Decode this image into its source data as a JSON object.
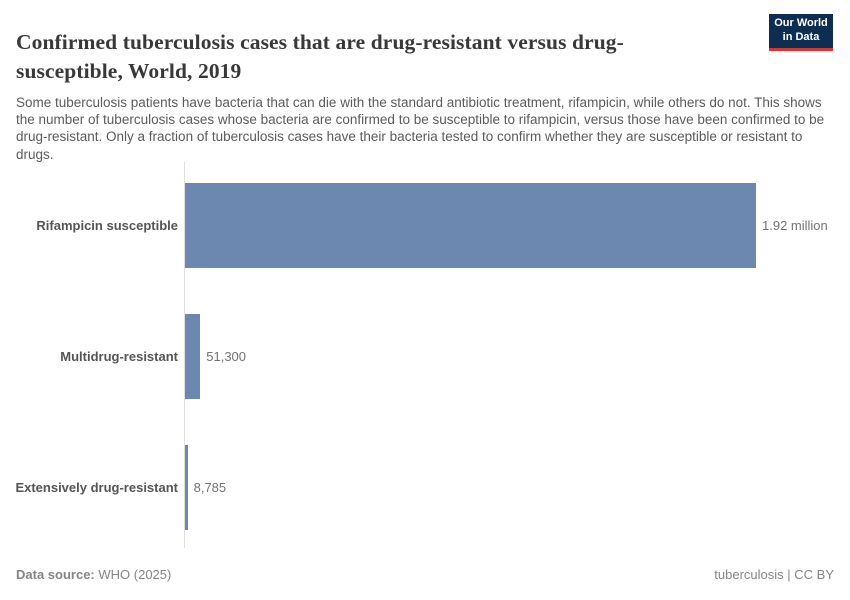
{
  "header": {
    "title": "Confirmed tuberculosis cases that are drug-resistant versus drug-susceptible, World, 2019",
    "subtitle": "Some tuberculosis patients have bacteria that can die with the standard antibiotic treatment, rifampicin, while others do not. This shows the number of tuberculosis cases whose bacteria are confirmed to be susceptible to rifampicin, versus those have been confirmed to be drug-resistant. Only a fraction of tuberculosis cases have their bacteria tested to confirm whether they are susceptible or resistant to drugs.",
    "logo": {
      "line1": "Our World",
      "line2": "in Data",
      "background_color": "#0d2d52",
      "accent_color": "#d8352e"
    }
  },
  "chart_data": {
    "type": "bar",
    "orientation": "horizontal",
    "title": "Confirmed tuberculosis cases that are drug-resistant versus drug-susceptible, World, 2019",
    "categories": [
      "Rifampicin susceptible",
      "Multidrug-resistant",
      "Extensively drug-resistant"
    ],
    "values": [
      1920000,
      51300,
      8785
    ],
    "value_labels": [
      "1.92 million",
      "51,300",
      "8,785"
    ],
    "xlim": [
      0,
      1920000
    ],
    "bar_color": "#6d88b0",
    "axis_line_color": "#dfdfdf",
    "grid": false,
    "legend": "none"
  },
  "footer": {
    "source_label": "Data source:",
    "source_value": "WHO (2025)",
    "license": "tuberculosis | CC BY"
  }
}
